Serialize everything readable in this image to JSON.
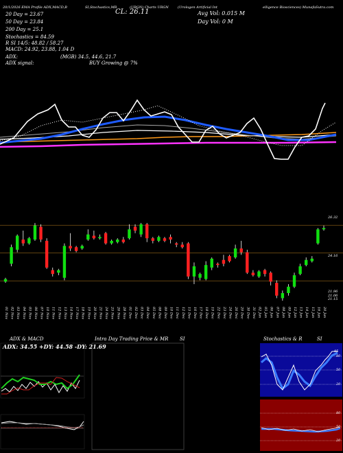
{
  "header": {
    "strip": "20/1/2026 EMA Profile ADX,MACD,B",
    "strip2": "SI,Stochastics,MR",
    "strip3": "(URGN) Charts URGN",
    "strip4": "(Urologen Artificial Int",
    "strip5": "elligence Biosciences) MunafaSutra.com",
    "cl": "CL: 26.11",
    "avg_vol": "Avg Vol: 0.015 M",
    "day_vol": "Day Vol: 0   M"
  },
  "info_lines": [
    "20  Day = 23.67",
    "50  Day = 23.84",
    "200  Day = 25.1",
    "Stochastics = 84.59",
    "R           SI 14/5: 48.82 / 58.27",
    "MACD: 24.92, 23.88, 1.04  D"
  ],
  "adx_lines": {
    "adx": "ADX:",
    "adx_signal": "ADX  signal:",
    "mgb": "(MGB) 34.5, 44.6, 21.7",
    "signal": "BUY Growing @ 7%"
  },
  "ema_chart": {
    "colors": {
      "price": "#ffffff",
      "ema20": "#1e5bff",
      "ema_gray": "#b0b0b0",
      "ema_orange": "#ff9a1a",
      "ema_magenta": "#ff33ff"
    }
  },
  "chart_data": {
    "type": "candlestick",
    "price_labels": [
      "26.32",
      "24.16",
      "21.96",
      "21.06",
      "21.15"
    ],
    "dates": [
      "01 Nov",
      "02 Nov",
      "03 Nov",
      "04 Nov",
      "05 Nov",
      "06 Nov",
      "07 Nov",
      "10 Nov",
      "11 Nov",
      "12 Nov",
      "13 Nov",
      "14 Nov",
      "17 Nov",
      "18 Nov",
      "19 Nov",
      "20 Nov",
      "21 Nov",
      "24 Nov",
      "25 Nov",
      "26 Nov",
      "28 Nov",
      "01 Dec",
      "02 Dec",
      "03 Dec",
      "04 Dec",
      "05 Dec",
      "08 Dec",
      "09 Dec",
      "10 Dec",
      "11 Dec",
      "12 Dec",
      "15 Dec",
      "16 Dec",
      "17 Dec",
      "18 Dec",
      "19 Dec",
      "22 Dec",
      "23 Dec",
      "24 Dec",
      "26 Dec",
      "29 Dec",
      "30 Dec",
      "31 Dec",
      "02 Jan",
      "05 Jan",
      "06 Jan",
      "07 Jan",
      "08 Jan",
      "09 Jan",
      "12 Jan",
      "13 Jan",
      "14 Jan",
      "15 Jan",
      "16 Jan",
      "20 Jan"
    ],
    "candles": [
      {
        "o": 21.9,
        "c": 22.1,
        "h": 22.2,
        "l": 21.8
      },
      {
        "o": 23.3,
        "c": 24.6,
        "h": 24.8,
        "l": 23.1
      },
      {
        "o": 24.4,
        "c": 25.5,
        "h": 25.6,
        "l": 24.2
      },
      {
        "o": 25.2,
        "c": 24.9,
        "h": 25.9,
        "l": 24.7
      },
      {
        "o": 24.9,
        "c": 25.3,
        "h": 25.4,
        "l": 24.8
      },
      {
        "o": 25.2,
        "c": 26.3,
        "h": 26.5,
        "l": 25.1
      },
      {
        "o": 26.2,
        "c": 25.2,
        "h": 26.4,
        "l": 25.0
      },
      {
        "o": 25.1,
        "c": 23.0,
        "h": 25.3,
        "l": 22.9
      },
      {
        "o": 22.8,
        "c": 22.5,
        "h": 23.0,
        "l": 22.3
      },
      {
        "o": 22.6,
        "c": 22.8,
        "h": 22.9,
        "l": 22.4
      },
      {
        "o": 22.2,
        "c": 24.7,
        "h": 24.9,
        "l": 22.0
      },
      {
        "o": 24.7,
        "c": 24.5,
        "h": 25.7,
        "l": 24.3
      },
      {
        "o": 24.6,
        "c": 24.3,
        "h": 24.7,
        "l": 24.2
      },
      {
        "o": 24.5,
        "c": 24.7,
        "h": 24.8,
        "l": 24.4
      },
      {
        "o": 25.2,
        "c": 25.6,
        "h": 26.0,
        "l": 25.1
      },
      {
        "o": 25.5,
        "c": 25.3,
        "h": 25.9,
        "l": 25.2
      },
      {
        "o": 25.3,
        "c": 25.4,
        "h": 25.6,
        "l": 25.2
      },
      {
        "o": 25.7,
        "c": 24.9,
        "h": 25.8,
        "l": 24.8
      },
      {
        "o": 24.9,
        "c": 25.1,
        "h": 25.2,
        "l": 24.8
      },
      {
        "o": 25.0,
        "c": 25.2,
        "h": 25.3,
        "l": 24.9
      },
      {
        "o": 25.2,
        "c": 25.0,
        "h": 25.4,
        "l": 24.9
      },
      {
        "o": 25.3,
        "c": 26.0,
        "h": 26.4,
        "l": 25.2
      },
      {
        "o": 26.2,
        "c": 25.9,
        "h": 26.4,
        "l": 25.7
      },
      {
        "o": 25.6,
        "c": 26.4,
        "h": 26.5,
        "l": 25.4
      },
      {
        "o": 26.4,
        "c": 25.3,
        "h": 26.5,
        "l": 25.0
      },
      {
        "o": 25.3,
        "c": 25.1,
        "h": 25.4,
        "l": 24.9
      },
      {
        "o": 25.1,
        "c": 25.4,
        "h": 25.5,
        "l": 25.0
      },
      {
        "o": 25.3,
        "c": 25.1,
        "h": 25.4,
        "l": 25.0
      },
      {
        "o": 25.4,
        "c": 25.2,
        "h": 25.6,
        "l": 24.9
      },
      {
        "o": 24.9,
        "c": 24.8,
        "h": 25.0,
        "l": 24.6
      },
      {
        "o": 24.8,
        "c": 24.6,
        "h": 25.0,
        "l": 24.5
      },
      {
        "o": 24.9,
        "c": 22.3,
        "h": 25.0,
        "l": 22.1
      },
      {
        "o": 22.3,
        "c": 23.1,
        "h": 23.4,
        "l": 21.7
      },
      {
        "o": 22.2,
        "c": 22.5,
        "h": 22.6,
        "l": 22.0
      },
      {
        "o": 22.1,
        "c": 23.2,
        "h": 23.5,
        "l": 22.0
      },
      {
        "o": 23.0,
        "c": 23.7,
        "h": 23.8,
        "l": 22.8
      },
      {
        "o": 23.3,
        "c": 23.2,
        "h": 23.4,
        "l": 23.0
      },
      {
        "o": 23.6,
        "c": 23.3,
        "h": 24.0,
        "l": 23.1
      },
      {
        "o": 23.9,
        "c": 23.5,
        "h": 24.0,
        "l": 23.4
      },
      {
        "o": 23.8,
        "c": 24.5,
        "h": 24.8,
        "l": 23.7
      },
      {
        "o": 24.5,
        "c": 24.2,
        "h": 25.1,
        "l": 24.0
      },
      {
        "o": 24.2,
        "c": 22.6,
        "h": 24.4,
        "l": 22.5
      },
      {
        "o": 22.6,
        "c": 22.4,
        "h": 22.8,
        "l": 22.3
      },
      {
        "o": 22.3,
        "c": 22.7,
        "h": 22.8,
        "l": 22.2
      },
      {
        "o": 22.8,
        "c": 22.5,
        "h": 22.9,
        "l": 22.3
      },
      {
        "o": 22.6,
        "c": 21.9,
        "h": 22.7,
        "l": 21.6
      },
      {
        "o": 21.8,
        "c": 20.8,
        "h": 22.0,
        "l": 20.6
      },
      {
        "o": 20.6,
        "c": 21.0,
        "h": 21.2,
        "l": 20.4
      },
      {
        "o": 21.0,
        "c": 21.5,
        "h": 21.7,
        "l": 20.8
      },
      {
        "o": 21.5,
        "c": 22.4,
        "h": 22.6,
        "l": 21.4
      },
      {
        "o": 22.5,
        "c": 23.1,
        "h": 23.3,
        "l": 22.4
      },
      {
        "o": 23.2,
        "c": 23.6,
        "h": 23.8,
        "l": 23.1
      },
      {
        "o": 23.5,
        "c": 23.7,
        "h": 23.9,
        "l": 23.4
      },
      {
        "o": 24.9,
        "c": 26.0,
        "h": 26.1,
        "l": 24.8
      },
      {
        "o": 26.0,
        "c": 26.1,
        "h": 26.3,
        "l": 25.9
      }
    ],
    "ylim": [
      20.3,
      27.3
    ]
  },
  "panels": {
    "adx_title": "ADX  & MACD",
    "adx_readout": "ADX: 34.55 +DY: 44.58  -DY: 21.69",
    "intra_title": "Intra  Day Trading Price  & MR",
    "intra_si": "SI",
    "stoch_title": "Stochastics & R",
    "stoch_si": "SI",
    "stoch_ticks": [
      "80",
      "50",
      "20"
    ],
    "rsi_ticks": [
      "80",
      "50",
      "20"
    ],
    "stoch_value": "85"
  }
}
